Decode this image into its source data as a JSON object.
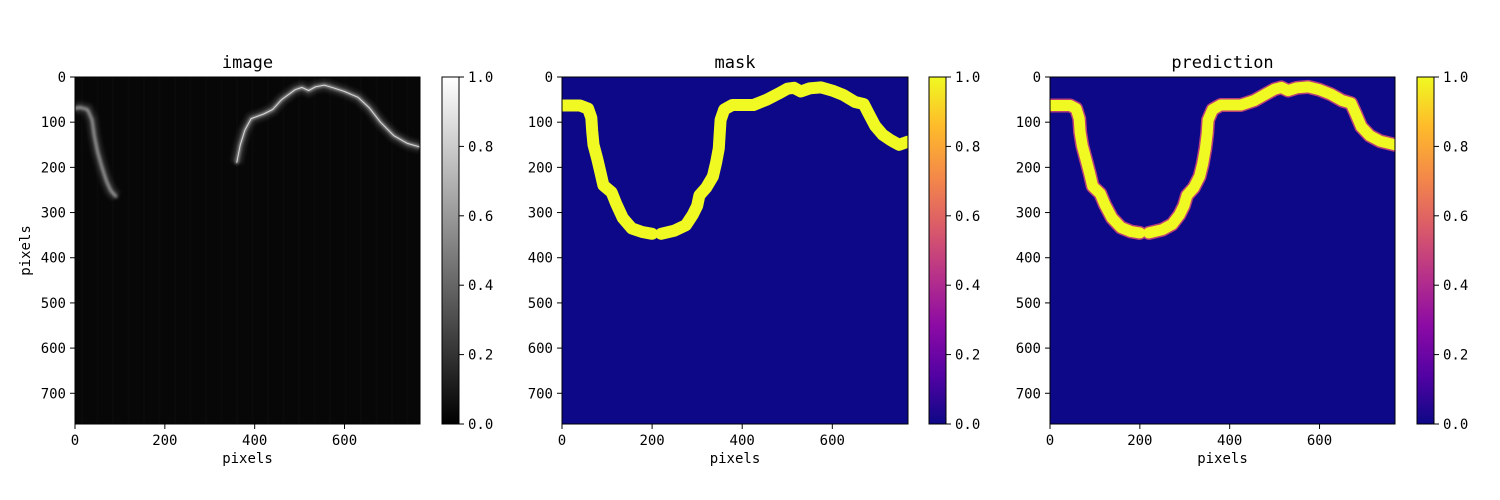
{
  "chart_data": [
    {
      "type": "heatmap",
      "title": "image",
      "xlabel": "pixels",
      "ylabel": "pixels",
      "xlim": [
        0,
        768
      ],
      "ylim": [
        768,
        0
      ],
      "x_ticks": [
        0,
        200,
        400,
        600
      ],
      "y_ticks": [
        0,
        100,
        200,
        300,
        400,
        500,
        600,
        700
      ],
      "colormap": "gray",
      "colorbar_ticks": [
        "0.0",
        "0.2",
        "0.4",
        "0.6",
        "0.8",
        "1.0"
      ],
      "colorbar_range": [
        0.0,
        1.0
      ],
      "background_color": "#070707",
      "feature_color": "#d8d8d8",
      "feature_curve": [
        [
          0,
          70
        ],
        [
          10,
          67
        ],
        [
          28,
          72
        ],
        [
          38,
          95
        ],
        [
          43,
          130
        ],
        [
          50,
          165
        ],
        [
          60,
          200
        ],
        [
          70,
          230
        ],
        [
          80,
          252
        ],
        [
          92,
          265
        ]
      ],
      "feature_curve_2": [
        [
          360,
          190
        ],
        [
          368,
          150
        ],
        [
          378,
          118
        ],
        [
          392,
          92
        ],
        [
          420,
          82
        ],
        [
          440,
          72
        ],
        [
          460,
          50
        ],
        [
          490,
          28
        ],
        [
          505,
          23
        ],
        [
          520,
          30
        ],
        [
          535,
          22
        ],
        [
          555,
          18
        ],
        [
          575,
          24
        ],
        [
          600,
          32
        ],
        [
          630,
          45
        ],
        [
          655,
          68
        ],
        [
          680,
          100
        ],
        [
          710,
          130
        ],
        [
          740,
          147
        ],
        [
          768,
          155
        ]
      ]
    },
    {
      "type": "heatmap",
      "title": "mask",
      "xlabel": "pixels",
      "xlim": [
        0,
        768
      ],
      "ylim": [
        768,
        0
      ],
      "x_ticks": [
        0,
        200,
        400,
        600
      ],
      "y_ticks": [
        0,
        100,
        200,
        300,
        400,
        500,
        600,
        700
      ],
      "colormap": "plasma",
      "colorbar_ticks": [
        "0.0",
        "0.2",
        "0.4",
        "0.6",
        "0.8",
        "1.0"
      ],
      "colorbar_range": [
        0.0,
        1.0
      ],
      "background_color": "#0d0887",
      "curve_color": "#f0f921",
      "curve": [
        [
          0,
          63
        ],
        [
          40,
          63
        ],
        [
          58,
          70
        ],
        [
          65,
          90
        ],
        [
          67,
          120
        ],
        [
          70,
          150
        ],
        [
          78,
          180
        ],
        [
          85,
          210
        ],
        [
          92,
          240
        ],
        [
          110,
          255
        ],
        [
          120,
          280
        ],
        [
          135,
          312
        ],
        [
          155,
          335
        ],
        [
          178,
          343
        ],
        [
          200,
          347
        ],
        [
          220,
          347
        ],
        [
          250,
          340
        ],
        [
          275,
          328
        ],
        [
          290,
          305
        ],
        [
          300,
          285
        ],
        [
          305,
          262
        ],
        [
          320,
          245
        ],
        [
          335,
          220
        ],
        [
          342,
          190
        ],
        [
          348,
          158
        ],
        [
          350,
          125
        ],
        [
          352,
          95
        ],
        [
          360,
          72
        ],
        [
          378,
          62
        ],
        [
          425,
          62
        ],
        [
          455,
          50
        ],
        [
          480,
          37
        ],
        [
          500,
          26
        ],
        [
          515,
          24
        ],
        [
          530,
          32
        ],
        [
          550,
          25
        ],
        [
          575,
          23
        ],
        [
          600,
          30
        ],
        [
          625,
          40
        ],
        [
          650,
          55
        ],
        [
          670,
          60
        ],
        [
          680,
          80
        ],
        [
          695,
          108
        ],
        [
          712,
          128
        ],
        [
          730,
          140
        ],
        [
          748,
          150
        ],
        [
          768,
          143
        ]
      ]
    },
    {
      "type": "heatmap",
      "title": "prediction",
      "xlabel": "pixels",
      "xlim": [
        0,
        768
      ],
      "ylim": [
        768,
        0
      ],
      "x_ticks": [
        0,
        200,
        400,
        600
      ],
      "y_ticks": [
        0,
        100,
        200,
        300,
        400,
        500,
        600,
        700
      ],
      "colormap": "plasma",
      "colorbar_ticks": [
        "0.0",
        "0.2",
        "0.4",
        "0.6",
        "0.8",
        "1.0"
      ],
      "colorbar_range": [
        0.0,
        1.0
      ],
      "background_color": "#0d0887",
      "curve_color": "#f0f921",
      "edge_color": "#cc4778",
      "curve": [
        [
          0,
          63
        ],
        [
          45,
          63
        ],
        [
          58,
          70
        ],
        [
          65,
          92
        ],
        [
          67,
          122
        ],
        [
          72,
          152
        ],
        [
          80,
          182
        ],
        [
          88,
          212
        ],
        [
          95,
          242
        ],
        [
          112,
          258
        ],
        [
          122,
          282
        ],
        [
          138,
          312
        ],
        [
          158,
          333
        ],
        [
          180,
          342
        ],
        [
          200,
          345
        ],
        [
          220,
          345
        ],
        [
          250,
          338
        ],
        [
          272,
          326
        ],
        [
          288,
          305
        ],
        [
          298,
          285
        ],
        [
          305,
          262
        ],
        [
          320,
          245
        ],
        [
          333,
          220
        ],
        [
          340,
          192
        ],
        [
          346,
          158
        ],
        [
          350,
          125
        ],
        [
          352,
          95
        ],
        [
          362,
          72
        ],
        [
          380,
          62
        ],
        [
          425,
          62
        ],
        [
          455,
          52
        ],
        [
          480,
          38
        ],
        [
          500,
          27
        ],
        [
          515,
          23
        ],
        [
          530,
          30
        ],
        [
          550,
          24
        ],
        [
          575,
          22
        ],
        [
          600,
          28
        ],
        [
          625,
          38
        ],
        [
          650,
          52
        ],
        [
          670,
          58
        ],
        [
          680,
          80
        ],
        [
          693,
          110
        ],
        [
          712,
          130
        ],
        [
          735,
          142
        ],
        [
          768,
          150
        ]
      ]
    }
  ],
  "colors": {
    "axis": "#000000",
    "plasma_bar": [
      "#0d0887",
      "#5302a3",
      "#8b0aa5",
      "#b83289",
      "#db5c68",
      "#f48849",
      "#febc2a",
      "#f0f921"
    ]
  }
}
